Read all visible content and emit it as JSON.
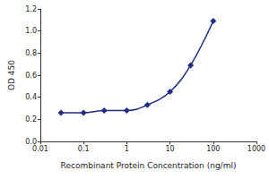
{
  "chart_data": {
    "type": "line",
    "xlabel": "Recombinant Protein Concentration (ng/ml)",
    "ylabel": "OD 450",
    "log": "x",
    "x": [
      0.03,
      0.1,
      0.3,
      1,
      3,
      10,
      30,
      100
    ],
    "values": [
      0.26,
      0.26,
      0.28,
      0.28,
      0.33,
      0.45,
      0.69,
      1.09
    ],
    "color": "#1f2d86",
    "marker": "diamond",
    "line_style": "solid",
    "grid": false,
    "xlim": [
      0.01,
      1000
    ],
    "xticks": [
      0.01,
      0.1,
      1,
      10,
      100,
      1000
    ],
    "ylim": [
      0,
      1.2
    ],
    "yticks": [
      {
        "value": 0,
        "label": "0.0"
      },
      0.2,
      0.4,
      0.6,
      0.8,
      {
        "value": 1,
        "label": "1.0"
      },
      1.2
    ]
  }
}
